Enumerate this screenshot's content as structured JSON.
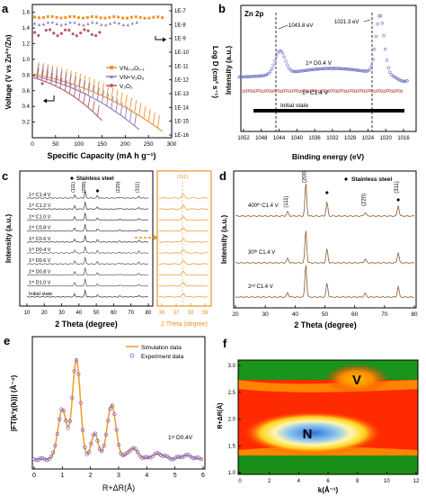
{
  "panels": {
    "a": {
      "letter": "a",
      "ylabel_left": "Voltage (V vs Zn²⁺/Zn)",
      "ylabel_right": "Log D (cm² s⁻¹)",
      "xlabel": "Specific Capacity (mA h g⁻¹)",
      "xticks": [
        "0",
        "50",
        "100",
        "150",
        "200",
        "250",
        "300"
      ],
      "yticks_left": [
        "0.2",
        "0.4",
        "0.6",
        "0.8",
        "1.0",
        "1.2",
        "1.4",
        "1.6"
      ],
      "yticks_right": [
        "1E-16",
        "1E-15",
        "1E-14",
        "1E-13",
        "1E-12",
        "1E-11",
        "1E-10",
        "1E-9",
        "1E-8",
        "1E-7"
      ],
      "legend": [
        "VN₀.₉O₀.₁",
        "VN+V₂O₃",
        "V₂O₃"
      ],
      "colors": {
        "vn": "#f0932b",
        "vnv": "#8e7fc0",
        "v2o3": "#b85c66"
      }
    },
    "b": {
      "letter": "b",
      "title": "Zn 2p",
      "ylabel": "Intensity (a.u.)",
      "xlabel": "Binding energy (eV)",
      "xticks": [
        "1052",
        "1048",
        "1044",
        "1040",
        "1036",
        "1032",
        "1028",
        "1024",
        "1020",
        "1016"
      ],
      "annot1": "1043.8 eV",
      "annot2": "1021.3 eV",
      "lab_d": "1ˢᵗ D0.4 V",
      "lab_c": "1ˢᵗ C1.4 V",
      "lab_init": "Initial state"
    },
    "c": {
      "letter": "c",
      "ylabel": "Intensity (a.u.)",
      "xlabel": "2 Theta (degree)",
      "xlabel_zoom": "2 Theta (degree)",
      "legend": "Stainless steel",
      "xticks": [
        "10",
        "20",
        "30",
        "40",
        "50",
        "60",
        "70",
        "80"
      ],
      "xticks_zoom": [
        "36",
        "37",
        "38",
        "39"
      ],
      "peaks": [
        "(111)",
        "(200)",
        "(220)",
        "(311)"
      ],
      "peak_zoom": "(111)",
      "states": [
        "1ˢᵗ C1.4 V",
        "1ˢᵗ C1.2 V",
        "1ˢᵗ C1.0 V",
        "1ˢᵗ C0.8 V",
        "1ˢᵗ C0.6 V",
        "1ˢᵗ D0.4 V",
        "1ˢᵗ D0.6 V",
        "1ˢᵗ D0.8 V",
        "1ˢᵗ D1.0 V",
        "Initial state"
      ]
    },
    "d": {
      "letter": "d",
      "ylabel": "Intensity (a.u.)",
      "xlabel": "2 Theta (degree)",
      "legend": "Stainless steel",
      "xticks": [
        "20",
        "30",
        "40",
        "50",
        "60",
        "70",
        "80"
      ],
      "peaks": [
        "(111)",
        "(200)",
        "(220)",
        "(311)"
      ],
      "states": [
        "400ᵗʰ C1.4 V",
        "30ᵗʰ C1.4 V",
        "2ⁿᵈ C1.4 V"
      ]
    },
    "e": {
      "letter": "e",
      "ylabel": "|FT(k³χ(k))| (Å⁻⁴)",
      "xlabel": "R+ΔR(Å)",
      "xticks": [
        "0",
        "1",
        "2",
        "3",
        "4",
        "5",
        "6"
      ],
      "legend": [
        "Simulation data",
        "Experiment data"
      ],
      "annot": "1ˢᵗ D0.4V"
    },
    "f": {
      "letter": "f",
      "ylabel": "R+ΔR(Å)",
      "xlabel": "k(Å⁻¹)",
      "xticks": [
        "0",
        "2",
        "4",
        "6",
        "8",
        "10",
        "12"
      ],
      "yticks": [
        "1.0",
        "1.5",
        "2.0",
        "2.5",
        "3.0"
      ],
      "label_v": "V",
      "label_n": "N"
    }
  }
}
